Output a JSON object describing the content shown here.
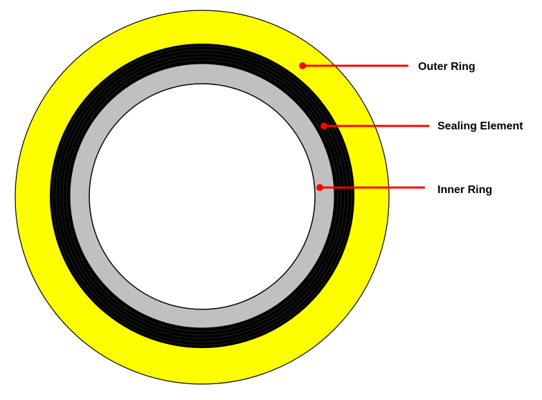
{
  "diagram": {
    "title": "",
    "colors": {
      "outer_ring": "#FFFF00",
      "sealing_element": "#000000",
      "inner_ring": "#C0C0C0",
      "bore": "#FFFFFF",
      "leader": "#FF0000",
      "outline": "#000000",
      "winding": "#2a2a2a"
    },
    "labels": {
      "outer_ring": "Outer Ring",
      "sealing_element": "Sealing Element",
      "inner_ring": "Inner Ring"
    }
  }
}
